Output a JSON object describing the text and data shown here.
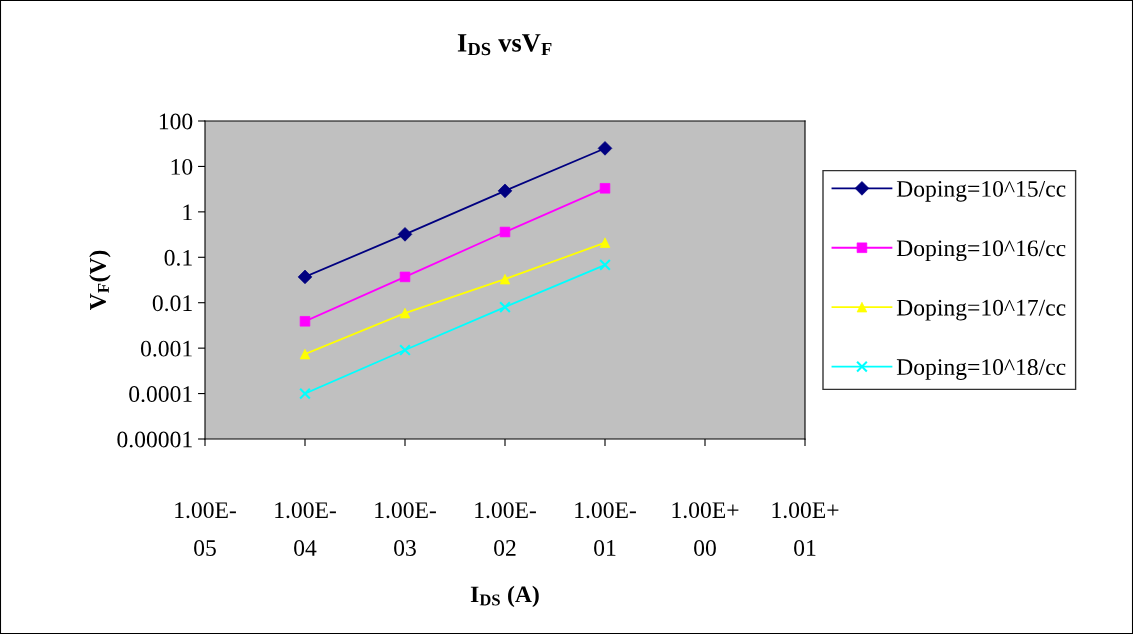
{
  "chart_data": {
    "type": "line",
    "title": "I$_{DS}$ vsV$_{F}$",
    "xlabel": "I$_{DS}$ (A)",
    "ylabel": "V$_{F}$(V)",
    "categories": [
      "1.00E-\n05",
      "1.00E-\n04",
      "1.00E-\n03",
      "1.00E-\n02",
      "1.00E-\n01",
      "1.00E+\n00",
      "1.00E+\n01"
    ],
    "series": [
      {
        "name": "Doping=10^15/cc",
        "color": "#000080",
        "marker": "diamond",
        "values": [
          null,
          0.037,
          0.32,
          2.9,
          25,
          null,
          null
        ]
      },
      {
        "name": "Doping=10^16/cc",
        "color": "#ff00ff",
        "marker": "square",
        "values": [
          null,
          0.0039,
          0.037,
          0.36,
          3.3,
          null,
          null
        ]
      },
      {
        "name": "Doping=10^17/cc",
        "color": "#ffff00",
        "marker": "triangle",
        "values": [
          null,
          0.00074,
          0.0059,
          0.033,
          0.21,
          null,
          null
        ]
      },
      {
        "name": "Doping=10^18/cc",
        "color": "#00ffff",
        "marker": "cross",
        "values": [
          null,
          0.0001,
          0.00091,
          0.008,
          0.068,
          null,
          null
        ]
      }
    ],
    "log": "y",
    "ylim": [
      1e-05,
      100
    ],
    "yticks": [
      {
        "value": 1e-05,
        "label": "0.00001"
      },
      {
        "value": 0.0001,
        "label": "0.0001"
      },
      {
        "value": 0.001,
        "label": "0.001"
      },
      {
        "value": 0.01,
        "label": "0.01"
      },
      {
        "value": 0.1,
        "label": "0.1"
      },
      {
        "value": 1,
        "label": "1"
      },
      {
        "value": 10,
        "label": "10"
      },
      {
        "value": 100,
        "label": "100"
      }
    ],
    "grid": false,
    "legend": "right",
    "line_style": "solid"
  }
}
